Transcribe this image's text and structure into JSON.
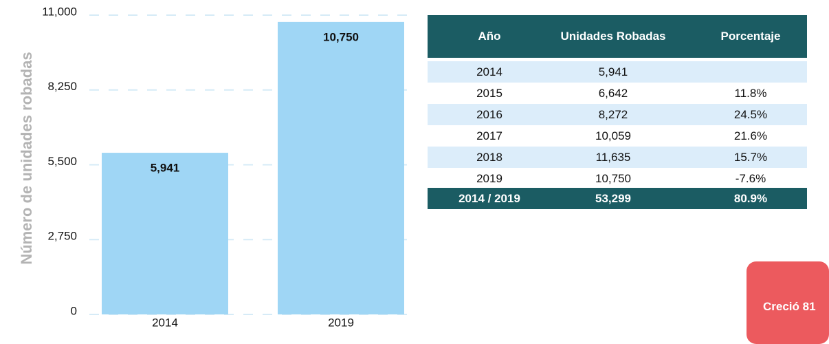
{
  "chart_data": {
    "type": "bar",
    "y_label": "Número de unidades robadas",
    "categories": [
      "2014",
      "2019"
    ],
    "values": [
      5941,
      10750
    ],
    "value_labels": [
      "5,941",
      "10,750"
    ],
    "color": "#9fd6f5",
    "ylim": [
      0,
      11000
    ],
    "yticks": [
      0,
      {
        "value": 2750,
        "label": "2,750"
      },
      {
        "value": 5500,
        "label": "5,500"
      },
      {
        "value": 8250,
        "label": "8,250"
      },
      {
        "value": 11000,
        "label": "11,000"
      }
    ],
    "grid": true
  },
  "table": {
    "header": [
      "Año",
      "Unidades Robadas",
      "Porcentaje"
    ],
    "rows": [
      [
        "2014",
        "5,941"
      ],
      [
        "2015",
        "6,642",
        "11.8%"
      ],
      [
        "2016",
        "8,272",
        "24.5%"
      ],
      [
        "2017",
        "10,059",
        "21.6%"
      ],
      [
        "2018",
        "11,635",
        "15.7%"
      ],
      [
        "2019",
        "10,750",
        "-7.6%"
      ]
    ],
    "total": [
      "2014 / 2019",
      "53,299",
      "80.9%"
    ]
  },
  "badge": "Creció 81"
}
